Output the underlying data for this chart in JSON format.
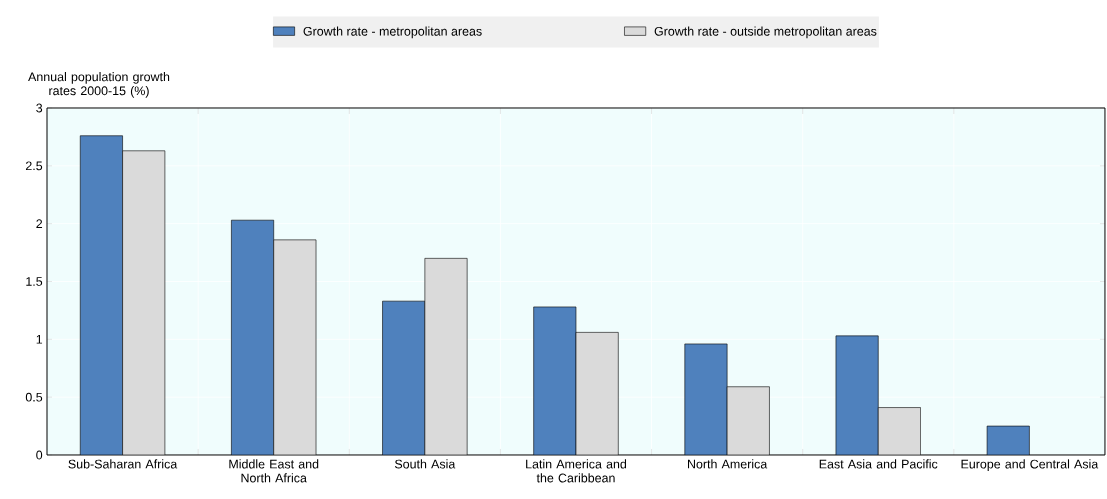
{
  "chart_data": {
    "type": "bar",
    "ylabel": "Annual population growth rates 2000-15 (%)",
    "categories": [
      "Sub-Saharan Africa",
      "Middle East and North Africa",
      "South Asia",
      "Latin America and the Caribbean",
      "North America",
      "East Asia and Pacific",
      "Europe and Central Asia"
    ],
    "series": [
      {
        "name": "Growth rate - metropolitan areas",
        "color": "#4f81bd",
        "values": [
          2.76,
          2.03,
          1.33,
          1.28,
          0.96,
          1.03,
          0.25
        ]
      },
      {
        "name": "Growth rate - outside metropolitan areas",
        "color": "#dadada",
        "values": [
          2.63,
          1.86,
          1.7,
          1.06,
          0.59,
          0.41,
          null
        ]
      }
    ],
    "ylim": [
      0,
      3
    ],
    "yticks": [
      0,
      0.5,
      1,
      1.5,
      2,
      2.5,
      3
    ],
    "grid": true,
    "legend": "top"
  }
}
